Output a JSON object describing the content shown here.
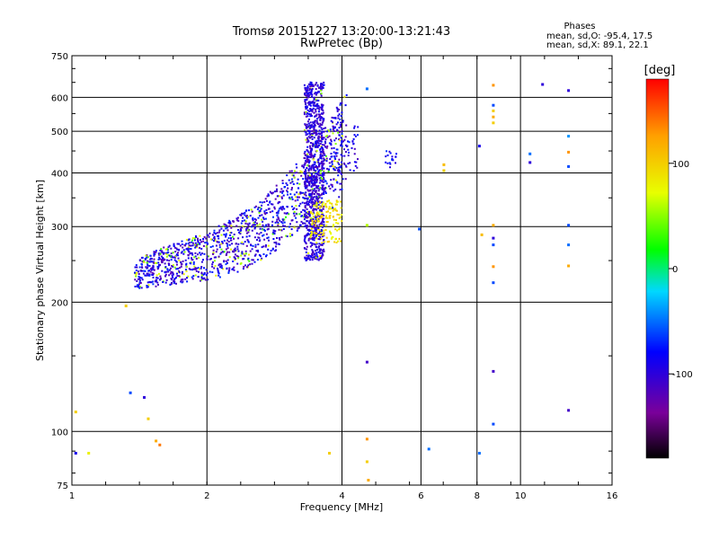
{
  "chart_data": {
    "type": "scatter",
    "title": "Tromsø 20151227 13:20:00-13:21:43",
    "subtitle": "RwPretec (Bp)",
    "xlabel": "Frequency [MHz]",
    "ylabel": "Stationary phase Virtual Height [km]",
    "x_scale": "log2",
    "y_scale": "log",
    "xlim": [
      1,
      16
    ],
    "ylim": [
      75,
      750
    ],
    "x_ticks": [
      1,
      2,
      4,
      6,
      8,
      10,
      16
    ],
    "y_ticks": [
      75,
      100,
      200,
      300,
      400,
      500,
      600,
      750
    ],
    "x_gridlines": [
      2,
      4,
      6,
      8,
      10
    ],
    "y_gridlines": [
      100,
      200,
      300,
      400,
      500,
      600
    ],
    "grid": true,
    "phase_info": {
      "heading": "Phases",
      "line1": "mean, sd,O: -95.4, 17.5",
      "line2": "mean, sd,X: 89.1, 22.1"
    },
    "colorbar": {
      "label": "[deg]",
      "min": -180,
      "max": 180,
      "ticks": [
        100,
        0,
        -100
      ],
      "colormap": "rainbow (black-purple-blue-cyan-green-yellow-red)"
    },
    "series_summary": "Dense O-mode echo trace (phase about -95°) rising from ~230 km near 1.4 MHz to ~650 km near 3.5 MHz, with X-mode echoes (phase about +90°) near 3.6-4 MHz and scattered isolated echoes at higher frequencies.",
    "series": [
      {
        "name": "isolated echoes",
        "points": [
          {
            "x": 1.02,
            "y": 89,
            "phase": -90
          },
          {
            "x": 1.09,
            "y": 89,
            "phase": 80
          },
          {
            "x": 1.02,
            "y": 111,
            "phase": 100
          },
          {
            "x": 1.35,
            "y": 123,
            "phase": -60
          },
          {
            "x": 1.45,
            "y": 120,
            "phase": -100
          },
          {
            "x": 1.48,
            "y": 107,
            "phase": 100
          },
          {
            "x": 1.54,
            "y": 95,
            "phase": 120
          },
          {
            "x": 1.57,
            "y": 93,
            "phase": 140
          },
          {
            "x": 1.32,
            "y": 196,
            "phase": 100
          },
          {
            "x": 3.75,
            "y": 89,
            "phase": 100
          },
          {
            "x": 4.55,
            "y": 145,
            "phase": -110
          },
          {
            "x": 4.55,
            "y": 96,
            "phase": 130
          },
          {
            "x": 4.55,
            "y": 85,
            "phase": 100
          },
          {
            "x": 4.58,
            "y": 77,
            "phase": 120
          },
          {
            "x": 4.55,
            "y": 628,
            "phase": -50
          },
          {
            "x": 4.55,
            "y": 302,
            "phase": 60
          },
          {
            "x": 5.95,
            "y": 296,
            "phase": -60
          },
          {
            "x": 6.25,
            "y": 91,
            "phase": -50
          },
          {
            "x": 6.75,
            "y": 418,
            "phase": 110
          },
          {
            "x": 6.75,
            "y": 405,
            "phase": 100
          },
          {
            "x": 8.1,
            "y": 89,
            "phase": -50
          },
          {
            "x": 8.1,
            "y": 462,
            "phase": -90
          },
          {
            "x": 8.2,
            "y": 287,
            "phase": 110
          },
          {
            "x": 8.7,
            "y": 640,
            "phase": 130
          },
          {
            "x": 8.7,
            "y": 575,
            "phase": -60
          },
          {
            "x": 8.7,
            "y": 558,
            "phase": 100
          },
          {
            "x": 8.7,
            "y": 540,
            "phase": 120
          },
          {
            "x": 8.7,
            "y": 523,
            "phase": 100
          },
          {
            "x": 8.7,
            "y": 302,
            "phase": 120
          },
          {
            "x": 8.7,
            "y": 282,
            "phase": -100
          },
          {
            "x": 8.7,
            "y": 272,
            "phase": -60
          },
          {
            "x": 8.7,
            "y": 242,
            "phase": 130
          },
          {
            "x": 8.7,
            "y": 222,
            "phase": -60
          },
          {
            "x": 8.7,
            "y": 138,
            "phase": -110
          },
          {
            "x": 8.7,
            "y": 104,
            "phase": -60
          },
          {
            "x": 11.2,
            "y": 643,
            "phase": -100
          },
          {
            "x": 10.5,
            "y": 443,
            "phase": -50
          },
          {
            "x": 10.5,
            "y": 423,
            "phase": -100
          },
          {
            "x": 12.8,
            "y": 622,
            "phase": -100
          },
          {
            "x": 12.8,
            "y": 487,
            "phase": -40
          },
          {
            "x": 12.8,
            "y": 447,
            "phase": 130
          },
          {
            "x": 12.8,
            "y": 414,
            "phase": -60
          },
          {
            "x": 12.8,
            "y": 302,
            "phase": -60
          },
          {
            "x": 12.8,
            "y": 272,
            "phase": -50
          },
          {
            "x": 12.8,
            "y": 243,
            "phase": 120
          },
          {
            "x": 12.8,
            "y": 112,
            "phase": -110
          }
        ]
      }
    ]
  }
}
